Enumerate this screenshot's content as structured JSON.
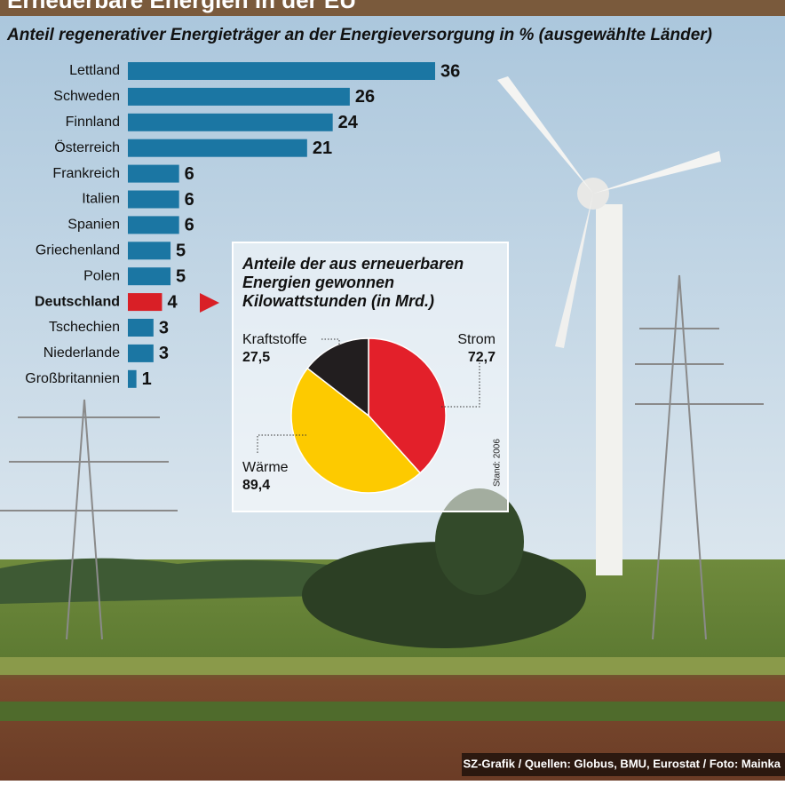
{
  "header": {
    "title": "Erneuerbare Energien in der EU",
    "subtitle": "Anteil regenerativer Energieträger an der Energieversorgung in % (ausgewählte Länder)"
  },
  "chart_data": [
    {
      "type": "bar",
      "categories": [
        "Lettland",
        "Schweden",
        "Finnland",
        "Österreich",
        "Frankreich",
        "Italien",
        "Spanien",
        "Griechenland",
        "Polen",
        "Deutschland",
        "Tschechien",
        "Niederlande",
        "Großbritannien"
      ],
      "values": [
        36,
        26,
        24,
        21,
        6,
        6,
        6,
        5,
        5,
        4,
        3,
        3,
        1
      ],
      "color": "#1b76a3",
      "highlight": "Deutschland",
      "highlight_color": "#d91f26"
    },
    {
      "type": "pie",
      "title": [
        "Anteile der aus erneuerbaren",
        "Energien gewonnen",
        "Kilowattstunden (in Mrd.)"
      ],
      "categories": [
        "Strom",
        "Wärme",
        "Kraftstoffe"
      ],
      "values": [
        72.7,
        89.4,
        27.5
      ],
      "value_labels": [
        "72,7",
        "89,4",
        "27,5"
      ],
      "colors": [
        "#e3202a",
        "#fdca00",
        "#221e1f"
      ],
      "note": "Stand: 2006"
    }
  ],
  "footer": {
    "source": "SZ-Grafik / Quellen: Globus, BMU, Eurostat / Foto: Mainka"
  }
}
